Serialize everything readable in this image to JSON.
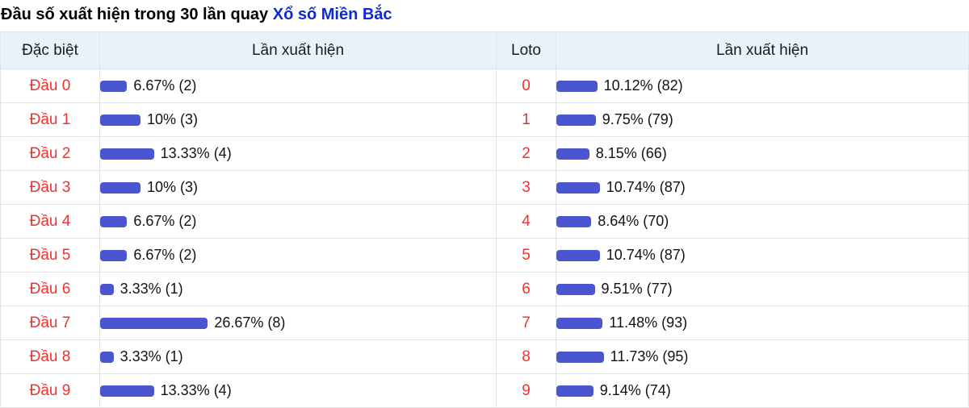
{
  "title": {
    "prefix": "Đầu số xuất hiện trong 30 lần quay ",
    "link": "Xổ số Miền Bắc"
  },
  "table": {
    "headers": {
      "special": "Đặc biệt",
      "special_occurrence": "Lần xuất hiện",
      "loto": "Loto",
      "loto_occurrence": "Lần xuất hiện"
    },
    "rows": [
      {
        "special": "Đầu 0",
        "special_pct": 6.67,
        "special_label": "6.67% (2)",
        "loto": "0",
        "loto_pct": 10.12,
        "loto_label": "10.12% (82)"
      },
      {
        "special": "Đầu 1",
        "special_pct": 10,
        "special_label": "10% (3)",
        "loto": "1",
        "loto_pct": 9.75,
        "loto_label": "9.75% (79)"
      },
      {
        "special": "Đầu 2",
        "special_pct": 13.33,
        "special_label": "13.33% (4)",
        "loto": "2",
        "loto_pct": 8.15,
        "loto_label": "8.15% (66)"
      },
      {
        "special": "Đầu 3",
        "special_pct": 10,
        "special_label": "10% (3)",
        "loto": "3",
        "loto_pct": 10.74,
        "loto_label": "10.74% (87)"
      },
      {
        "special": "Đầu 4",
        "special_pct": 6.67,
        "special_label": "6.67% (2)",
        "loto": "4",
        "loto_pct": 8.64,
        "loto_label": "8.64% (70)"
      },
      {
        "special": "Đầu 5",
        "special_pct": 6.67,
        "special_label": "6.67% (2)",
        "loto": "5",
        "loto_pct": 10.74,
        "loto_label": "10.74% (87)"
      },
      {
        "special": "Đầu 6",
        "special_pct": 3.33,
        "special_label": "3.33% (1)",
        "loto": "6",
        "loto_pct": 9.51,
        "loto_label": "9.51% (77)"
      },
      {
        "special": "Đầu 7",
        "special_pct": 26.67,
        "special_label": "26.67% (8)",
        "loto": "7",
        "loto_pct": 11.48,
        "loto_label": "11.48% (93)"
      },
      {
        "special": "Đầu 8",
        "special_pct": 3.33,
        "special_label": "3.33% (1)",
        "loto": "8",
        "loto_pct": 11.73,
        "loto_label": "11.73% (95)"
      },
      {
        "special": "Đầu 9",
        "special_pct": 13.33,
        "special_label": "13.33% (4)",
        "loto": "9",
        "loto_pct": 9.14,
        "loto_label": "9.14% (74)"
      }
    ]
  },
  "colors": {
    "bar": "#4a55cf",
    "accent_red": "#f13131",
    "link_blue": "#0d2bd0",
    "header_bg": "#e9f1fb",
    "grid_border": "#e3e3e3"
  },
  "chart_data": [
    {
      "type": "bar",
      "title": "Đầu số xuất hiện trong 30 lần quay Xổ số Miền Bắc — Đặc biệt",
      "categories": [
        "Đầu 0",
        "Đầu 1",
        "Đầu 2",
        "Đầu 3",
        "Đầu 4",
        "Đầu 5",
        "Đầu 6",
        "Đầu 7",
        "Đầu 8",
        "Đầu 9"
      ],
      "values": [
        6.67,
        10,
        13.33,
        10,
        6.67,
        6.67,
        3.33,
        26.67,
        3.33,
        13.33
      ],
      "counts": [
        2,
        3,
        4,
        3,
        2,
        2,
        1,
        8,
        1,
        4
      ],
      "value_unit": "percent",
      "xlabel": "Đặc biệt",
      "ylabel": "Lần xuất hiện",
      "orientation": "horizontal",
      "grid": false,
      "legend": false
    },
    {
      "type": "bar",
      "title": "Đầu số xuất hiện trong 30 lần quay Xổ số Miền Bắc — Loto",
      "categories": [
        "0",
        "1",
        "2",
        "3",
        "4",
        "5",
        "6",
        "7",
        "8",
        "9"
      ],
      "values": [
        10.12,
        9.75,
        8.15,
        10.74,
        8.64,
        10.74,
        9.51,
        11.48,
        11.73,
        9.14
      ],
      "counts": [
        82,
        79,
        66,
        87,
        70,
        87,
        77,
        93,
        95,
        74
      ],
      "value_unit": "percent",
      "xlabel": "Loto",
      "ylabel": "Lần xuất hiện",
      "orientation": "horizontal",
      "grid": false,
      "legend": false
    }
  ]
}
